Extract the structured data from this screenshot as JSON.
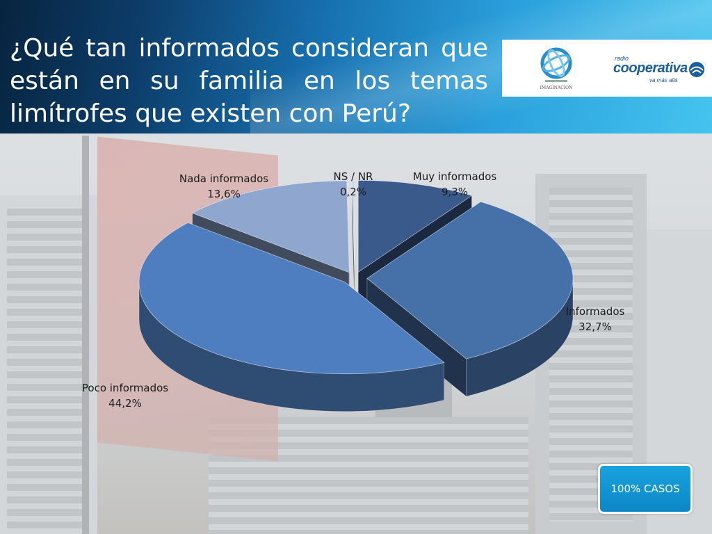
{
  "header": {
    "title": "¿Qué tan informados consideran que están en su familia en los temas limítrofes que existen con Perú?",
    "logos": {
      "imaginacion": "IMAGINACION",
      "cooperativa_small": "radio",
      "cooperativa_main": "cooperativa",
      "cooperativa_tagline": "va más allá"
    }
  },
  "badge": {
    "label": "100% CASOS"
  },
  "chart_data": {
    "type": "pie",
    "title": "",
    "slices": [
      {
        "label": "Muy informados",
        "value": 9.3,
        "value_label": "9,3%",
        "color": "#3a5a8c"
      },
      {
        "label": "Informados",
        "value": 32.7,
        "value_label": "32,7%",
        "color": "#4670a8"
      },
      {
        "label": "Poco informados",
        "value": 44.2,
        "value_label": "44,2%",
        "color": "#4f7ec0"
      },
      {
        "label": "Nada informados",
        "value": 13.6,
        "value_label": "13,6%",
        "color": "#8fa6cf"
      },
      {
        "label": "NS / NR",
        "value": 0.2,
        "value_label": "0,2%",
        "color": "#c9d4e8"
      }
    ]
  }
}
